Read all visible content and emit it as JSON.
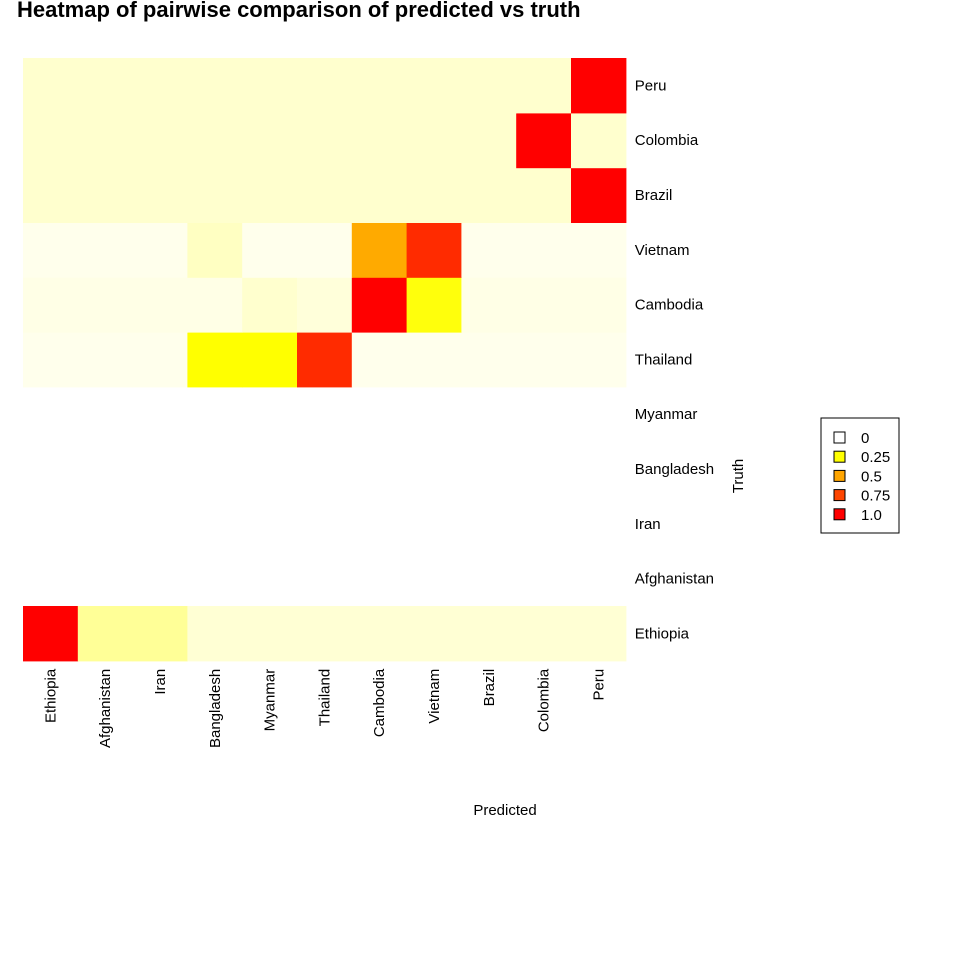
{
  "chart_data": {
    "type": "heatmap",
    "title": "Heatmap of pairwise comparison of predicted vs truth",
    "xlabel": "Predicted",
    "ylabel": "Truth",
    "x_categories": [
      "Ethiopia",
      "Afghanistan",
      "Iran",
      "Bangladesh",
      "Myanmar",
      "Thailand",
      "Cambodia",
      "Vietnam",
      "Brazil",
      "Colombia",
      "Peru"
    ],
    "y_categories": [
      "Ethiopia",
      "Afghanistan",
      "Iran",
      "Bangladesh",
      "Myanmar",
      "Thailand",
      "Cambodia",
      "Vietnam",
      "Brazil",
      "Colombia",
      "Peru"
    ],
    "values": [
      [
        1.0,
        0.15,
        0.15,
        0.05,
        0.05,
        0.05,
        0.05,
        0.05,
        0.05,
        0.05,
        0.05
      ],
      [
        null,
        null,
        null,
        null,
        null,
        null,
        null,
        null,
        null,
        null,
        null
      ],
      [
        null,
        null,
        null,
        null,
        null,
        null,
        null,
        null,
        null,
        null,
        null
      ],
      [
        null,
        null,
        null,
        null,
        null,
        null,
        null,
        null,
        null,
        null,
        null
      ],
      [
        null,
        null,
        null,
        null,
        null,
        null,
        null,
        null,
        null,
        null,
        null
      ],
      [
        0.01,
        0.01,
        0.01,
        0.4,
        0.4,
        0.9,
        0.01,
        0.01,
        0.01,
        0.01,
        0.01
      ],
      [
        0.02,
        0.02,
        0.02,
        0.02,
        0.06,
        0.04,
        1.0,
        0.38,
        0.02,
        0.02,
        0.02
      ],
      [
        0.01,
        0.01,
        0.01,
        0.08,
        0.01,
        0.01,
        0.6,
        0.9,
        0.01,
        0.01,
        0.01
      ],
      [
        0.06,
        0.06,
        0.06,
        0.06,
        0.06,
        0.06,
        0.06,
        0.06,
        0.06,
        0.06,
        1.0
      ],
      [
        0.06,
        0.06,
        0.06,
        0.06,
        0.06,
        0.06,
        0.06,
        0.06,
        0.06,
        1.0,
        0.06
      ],
      [
        0.06,
        0.06,
        0.06,
        0.06,
        0.06,
        0.06,
        0.06,
        0.06,
        0.06,
        0.06,
        1.0
      ]
    ],
    "legend": {
      "position": "right",
      "entries": [
        {
          "label": "0",
          "color": "#FFFFFF"
        },
        {
          "label": "0.25",
          "color": "#FFFF00"
        },
        {
          "label": "0.5",
          "color": "#FFA500"
        },
        {
          "label": "0.75",
          "color": "#FF4500"
        },
        {
          "label": "1.0",
          "color": "#FF0000"
        }
      ]
    },
    "colors": {
      "low": "#FFFFF2",
      "mid": "#FFFF00",
      "high": "#FF0000"
    }
  }
}
